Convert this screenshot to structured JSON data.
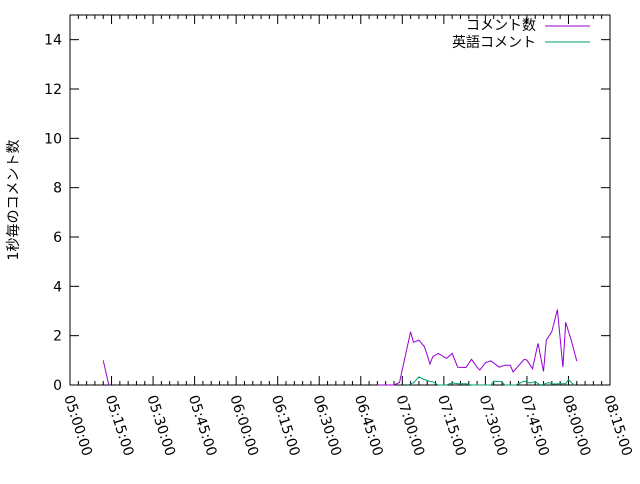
{
  "chart_data": {
    "type": "line",
    "title": "",
    "xlabel": "",
    "ylabel": "1秒毎のコメント数",
    "xlim": [
      "05:00:00",
      "08:15:00"
    ],
    "ylim": [
      0,
      15
    ],
    "x_ticks": [
      "05:00:00",
      "05:15:00",
      "05:30:00",
      "05:45:00",
      "06:00:00",
      "06:15:00",
      "06:30:00",
      "06:45:00",
      "07:00:00",
      "07:15:00",
      "07:30:00",
      "07:45:00",
      "08:00:00",
      "08:15:00"
    ],
    "y_ticks": [
      "0",
      "2",
      "4",
      "6",
      "8",
      "10",
      "12",
      "14"
    ],
    "grid": false,
    "legend_position": "top-right",
    "series": [
      {
        "name": "コメント数",
        "color": "#9400d3",
        "segments": [
          [
            [
              "05:12",
              1.0
            ],
            [
              "05:14",
              0
            ]
          ],
          [
            [
              "06:51",
              0
            ],
            [
              "06:57",
              0
            ],
            [
              "06:59",
              0.1
            ],
            [
              "07:03",
              2.16
            ],
            [
              "07:04",
              1.73
            ],
            [
              "07:06",
              1.82
            ],
            [
              "07:08",
              1.55
            ],
            [
              "07:10",
              0.85
            ],
            [
              "07:11",
              1.15
            ],
            [
              "07:13",
              1.28
            ],
            [
              "07:16",
              1.08
            ],
            [
              "07:18",
              1.28
            ],
            [
              "07:20",
              0.72
            ],
            [
              "07:23",
              0.71
            ],
            [
              "07:25",
              1.04
            ],
            [
              "07:27",
              0.72
            ],
            [
              "07:28",
              0.61
            ],
            [
              "07:30",
              0.9
            ],
            [
              "07:32",
              0.98
            ],
            [
              "07:35",
              0.72
            ],
            [
              "07:37",
              0.8
            ],
            [
              "07:39",
              0.8
            ],
            [
              "07:40",
              0.53
            ],
            [
              "07:44",
              1.04
            ],
            [
              "07:45",
              1.01
            ],
            [
              "07:47",
              0.66
            ],
            [
              "07:49",
              1.69
            ],
            [
              "07:51",
              0.55
            ],
            [
              "07:52",
              1.82
            ],
            [
              "07:54",
              2.16
            ],
            [
              "07:56",
              3.06
            ],
            [
              "07:58",
              0.72
            ],
            [
              "07:59",
              2.54
            ],
            [
              "08:01",
              1.82
            ],
            [
              "08:03",
              0.97
            ]
          ]
        ]
      },
      {
        "name": "英語コメント",
        "color": "#009e73",
        "segments": [
          [
            [
              "07:02",
              0
            ],
            [
              "07:04",
              0.09
            ],
            [
              "07:06",
              0.33
            ],
            [
              "07:08",
              0.22
            ],
            [
              "07:10",
              0.14
            ],
            [
              "07:11",
              0.13
            ],
            [
              "07:13",
              0
            ],
            [
              "07:16",
              0
            ],
            [
              "07:18",
              0.09
            ],
            [
              "07:20",
              0.05
            ],
            [
              "07:23",
              0.05
            ],
            [
              "07:25",
              0
            ],
            [
              "07:32",
              0
            ],
            [
              "07:33",
              0.16
            ],
            [
              "07:36",
              0.13
            ],
            [
              "07:37",
              0
            ],
            [
              "07:41",
              0
            ],
            [
              "07:44",
              0.16
            ],
            [
              "07:46",
              0.08
            ],
            [
              "07:48",
              0.13
            ],
            [
              "07:50",
              0
            ],
            [
              "07:53",
              0.1
            ],
            [
              "07:54",
              0.04
            ],
            [
              "07:57",
              0.05
            ],
            [
              "07:59",
              0.05
            ],
            [
              "08:00",
              0.22
            ],
            [
              "08:02",
              0
            ]
          ]
        ]
      }
    ]
  }
}
